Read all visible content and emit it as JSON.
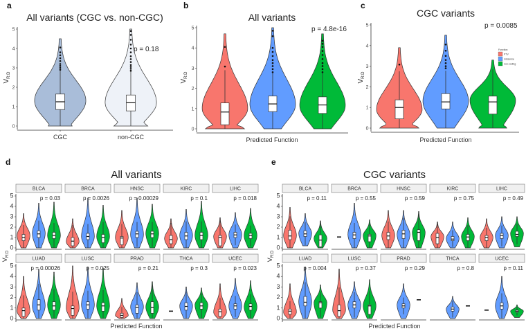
{
  "colors": {
    "PTV": "#F8766D",
    "missense": "#619CFF",
    "non-coding": "#00BA38",
    "CGC": "#A9BDD9",
    "non-CGC": "#EEF2F8"
  },
  "chart_data": [
    {
      "id": "a",
      "type": "violin",
      "title": "All variants (CGC vs. non-CGC)",
      "ylabel": "V_R:D",
      "ylabel_main": "V",
      "ylabel_sub": "R:D",
      "xlabel": "",
      "ylim": [
        0,
        5
      ],
      "yticks": [
        0,
        1,
        2,
        3,
        4,
        5
      ],
      "annotation": "p = 0.18",
      "categories": [
        "CGC",
        "non-CGC"
      ],
      "series": [
        {
          "category": "CGC",
          "color_key": "CGC",
          "median": 1.25,
          "q1": 0.85,
          "q3": 1.65,
          "vmin": 0,
          "vmax": 4.5,
          "peak": 1.3,
          "base": 0.45,
          "outliers": [
            2.9,
            3.0,
            3.1,
            3.2,
            3.35,
            3.5,
            3.65,
            3.8,
            4.05
          ]
        },
        {
          "category": "non-CGC",
          "color_key": "non-CGC",
          "median": 1.2,
          "q1": 0.78,
          "q3": 1.6,
          "vmin": 0,
          "vmax": 5.0,
          "peak": 1.2,
          "base": 0.65,
          "outliers": [
            2.85,
            2.95,
            3.05,
            3.15,
            3.3,
            3.45,
            3.6,
            3.8,
            4.0,
            4.2,
            4.45,
            4.7,
            4.9
          ]
        }
      ]
    },
    {
      "id": "b",
      "type": "violin",
      "title": "All variants",
      "ylabel_main": "V",
      "ylabel_sub": "R:D",
      "xlabel": "Predicted Function",
      "ylim": [
        0,
        5
      ],
      "yticks": [
        0,
        1,
        2,
        3,
        4,
        5
      ],
      "annotation": "p = 4.8e-16",
      "categories": [
        "PTV",
        "missense",
        "non-coding"
      ],
      "series": [
        {
          "category": "PTV",
          "color_key": "PTV",
          "median": 0.83,
          "q1": 0.2,
          "q3": 1.28,
          "vmin": 0,
          "vmax": 4.7,
          "peak": 1.0,
          "base": 0.85,
          "outliers": [
            3.08,
            4.05
          ]
        },
        {
          "category": "missense",
          "color_key": "missense",
          "median": 1.23,
          "q1": 0.85,
          "q3": 1.62,
          "vmin": 0,
          "vmax": 5.0,
          "peak": 1.2,
          "base": 0.35,
          "outliers": [
            2.8,
            2.95,
            3.1,
            3.25,
            3.4,
            3.6,
            3.8,
            4.0,
            4.58,
            4.85
          ]
        },
        {
          "category": "non-coding",
          "color_key": "non-coding",
          "median": 1.18,
          "q1": 0.76,
          "q3": 1.58,
          "vmin": 0,
          "vmax": 4.7,
          "peak": 1.15,
          "base": 0.35,
          "outliers": [
            2.8,
            2.95,
            3.1,
            3.25,
            3.45,
            3.65,
            3.85,
            4.05,
            4.2,
            4.35
          ]
        }
      ]
    },
    {
      "id": "c",
      "type": "violin",
      "title": "CGC variants",
      "ylabel_main": "V",
      "ylabel_sub": "R:D",
      "xlabel": "Predicted Function",
      "ylim": [
        0,
        5
      ],
      "yticks": [
        0,
        1,
        2,
        3,
        4,
        5
      ],
      "annotation": "p = 0.0085",
      "categories": [
        "PTV",
        "missense",
        "non-coding"
      ],
      "legend": {
        "title": "Function",
        "position": "right",
        "entries": [
          "PTV",
          "missense",
          "non-coding"
        ]
      },
      "series": [
        {
          "category": "PTV",
          "color_key": "PTV",
          "median": 1.0,
          "q1": 0.45,
          "q3": 1.37,
          "vmin": 0,
          "vmax": 3.9,
          "peak": 0.9,
          "base": 0.85,
          "outliers": [
            3.08
          ]
        },
        {
          "category": "missense",
          "color_key": "missense",
          "median": 1.27,
          "q1": 0.93,
          "q3": 1.67,
          "vmin": 0,
          "vmax": 4.5,
          "peak": 1.3,
          "base": 0.35,
          "outliers": [
            2.9,
            3.0,
            3.15,
            3.3,
            3.5,
            3.75,
            4.05
          ]
        },
        {
          "category": "non-coding",
          "color_key": "non-coding",
          "median": 1.27,
          "q1": 0.68,
          "q3": 1.55,
          "vmin": 0,
          "vmax": 3.3,
          "peak": 1.35,
          "base": 0.6,
          "outliers": []
        }
      ]
    },
    {
      "id": "d",
      "type": "violin-facets",
      "title": "All variants",
      "ylabel_main": "V",
      "ylabel_sub": "R:D",
      "xlabel": "Predicted Function",
      "ylim": [
        0,
        5
      ],
      "yticks": [
        0,
        1,
        2,
        3,
        4,
        5
      ],
      "series_order": [
        "PTV",
        "missense",
        "non-coding"
      ],
      "facets": [
        {
          "name": "BLCA",
          "p": "p = 0.03",
          "v": [
            [
              1.0,
              0.7,
              1.3,
              0,
              3.3,
              1.2
            ],
            [
              1.35,
              1.0,
              1.65,
              0,
              4.3,
              1.4
            ],
            [
              1.2,
              0.9,
              1.5,
              0,
              4.4,
              1.2
            ]
          ]
        },
        {
          "name": "BRCA",
          "p": "p = 0.0026",
          "v": [
            [
              0.65,
              0.2,
              1.0,
              0,
              2.8,
              0.6
            ],
            [
              1.1,
              0.8,
              1.4,
              0,
              4.8,
              1.1
            ],
            [
              1.0,
              0.5,
              1.3,
              0,
              4.1,
              1.1
            ]
          ]
        },
        {
          "name": "HNSC",
          "p": "p = 0.00029",
          "v": [
            [
              0.95,
              0.3,
              1.1,
              0,
              3.6,
              1.0
            ],
            [
              1.35,
              1.0,
              1.6,
              0,
              4.8,
              1.3
            ],
            [
              1.35,
              1.0,
              1.6,
              0,
              4.2,
              1.4
            ]
          ]
        },
        {
          "name": "KIRC",
          "p": "p = 0.1",
          "v": [
            [
              0.8,
              0.4,
              1.2,
              0,
              2.8,
              0.9
            ],
            [
              1.15,
              0.8,
              1.5,
              0,
              3.7,
              1.2
            ],
            [
              1.2,
              0.8,
              1.5,
              0,
              4.5,
              1.2
            ]
          ]
        },
        {
          "name": "LIHC",
          "p": "p = 0.018",
          "v": [
            [
              1.0,
              0.2,
              1.2,
              0,
              2.9,
              1.1
            ],
            [
              1.25,
              1.0,
              1.5,
              0,
              3.4,
              1.3
            ],
            [
              1.2,
              0.9,
              1.4,
              0,
              3.8,
              1.2
            ]
          ]
        },
        {
          "name": "LUAD",
          "p": "p = 0.00026",
          "v": [
            [
              0.75,
              0.2,
              1.0,
              0,
              4.0,
              0.7
            ],
            [
              1.3,
              0.8,
              1.8,
              0,
              4.7,
              1.2
            ],
            [
              1.2,
              0.8,
              1.6,
              0,
              4.4,
              1.3
            ]
          ]
        },
        {
          "name": "LUSC",
          "p": "p = 0.025",
          "v": [
            [
              0.95,
              0.3,
              1.2,
              0,
              5.0,
              1.0
            ],
            [
              1.3,
              0.9,
              1.6,
              0,
              4.9,
              1.3
            ],
            [
              1.2,
              0.7,
              1.5,
              0,
              4.8,
              1.2
            ]
          ]
        },
        {
          "name": "PRAD",
          "p": "p = 0.21",
          "v": [
            [
              0.3,
              0.1,
              0.5,
              0,
              1.9,
              0.3
            ],
            [
              1.05,
              0.5,
              1.3,
              0,
              3.4,
              1.1
            ],
            [
              1.05,
              0.5,
              1.6,
              0,
              3.5,
              1.1
            ]
          ]
        },
        {
          "name": "THCA",
          "p": "p = 0.3",
          "v": [
            [
              0.7
            ],
            [
              1.15,
              0.8,
              1.5,
              0,
              3.0,
              1.2
            ],
            [
              1.2,
              0.9,
              1.5,
              0,
              2.9,
              1.3
            ]
          ]
        },
        {
          "name": "UCEC",
          "p": "p = 0.023",
          "v": [
            [
              0.65,
              0.2,
              0.9,
              0,
              3.3,
              0.6
            ],
            [
              1.2,
              0.9,
              1.4,
              0,
              3.8,
              1.2
            ],
            [
              1.15,
              0.8,
              1.4,
              0,
              3.6,
              1.1
            ]
          ]
        }
      ]
    },
    {
      "id": "e",
      "type": "violin-facets",
      "title": "CGC variants",
      "ylabel_main": "V",
      "ylabel_sub": "R:D",
      "xlabel": "Predicted Function",
      "ylim": [
        0,
        5
      ],
      "yticks": [
        0,
        1,
        2,
        3,
        4,
        5
      ],
      "series_order": [
        "PTV",
        "missense",
        "non-coding"
      ],
      "facets": [
        {
          "name": "BLCA",
          "p": "p = 0.11",
          "v": [
            [
              1.15,
              0.8,
              1.7,
              0,
              3.9,
              1.2
            ],
            [
              1.35,
              1.1,
              1.65,
              0.2,
              3.3,
              1.4
            ],
            [
              0.75,
              0.1,
              1.25,
              0,
              2.6,
              0.9
            ]
          ]
        },
        {
          "name": "BRCA",
          "p": "p = 0.55",
          "v": [
            [
              1.05
            ],
            [
              1.25,
              0.9,
              1.5,
              0,
              4.3,
              1.3
            ],
            [
              1.15,
              0.6,
              1.3,
              0,
              2.7,
              1.2
            ]
          ]
        },
        {
          "name": "HNSC",
          "p": "p = 0.59",
          "v": [
            [
              1.15,
              0.8,
              1.5,
              0,
              3.6,
              1.2
            ],
            [
              1.35,
              0.9,
              1.7,
              0,
              3.6,
              1.3
            ],
            [
              1.5,
              0.7,
              1.75,
              0,
              3.5,
              1.5
            ]
          ]
        },
        {
          "name": "KIRC",
          "p": "p = 0.75",
          "v": [
            [
              1.0,
              0.4,
              1.4,
              0,
              2.5,
              1.1
            ],
            [
              0.85,
              0.7,
              1.1,
              0,
              2.5,
              0.9
            ],
            [
              1.05,
              0.7,
              1.3,
              0,
              2.9,
              1.1
            ]
          ]
        },
        {
          "name": "LIHC",
          "p": "p = 0.49",
          "v": [
            [
              1.0,
              0.7,
              1.2,
              0,
              2.8,
              1.0
            ],
            [
              1.2,
              0.9,
              1.4,
              0,
              3.0,
              1.2
            ],
            [
              1.3,
              1.1,
              1.6,
              0.1,
              3.0,
              1.4
            ]
          ]
        },
        {
          "name": "LUAD",
          "p": "p = 0.004",
          "v": [
            [
              0.7,
              0.4,
              0.9,
              0,
              3.3,
              0.6
            ],
            [
              1.55,
              1.2,
              2.1,
              0,
              4.9,
              1.6
            ],
            [
              1.5,
              1.0,
              1.6,
              0,
              3.2,
              1.5
            ]
          ]
        },
        {
          "name": "LUSC",
          "p": "p = 0.37",
          "v": [
            [
              0.75,
              0.2,
              1.3,
              0,
              4.7,
              0.8
            ],
            [
              1.3,
              1.0,
              1.6,
              0,
              3.5,
              1.3
            ],
            [
              1.2,
              0.4,
              1.3,
              0,
              3.7,
              1.2
            ]
          ]
        },
        {
          "name": "PRAD",
          "p": "p = 0.29",
          "v": [
            [],
            [
              1.2,
              1.0,
              1.4,
              0,
              3.3,
              1.3
            ],
            [
              1.78
            ]
          ]
        },
        {
          "name": "THCA",
          "p": "p = 0.8",
          "v": [
            [],
            [
              0.9,
              0.7,
              1.1,
              0,
              2.1,
              0.9
            ],
            [
              1.2
            ]
          ]
        },
        {
          "name": "UCEC",
          "p": "p = 0.11",
          "v": [
            [
              0.8
            ],
            [
              1.2,
              0.9,
              1.5,
              0,
              4.0,
              1.2
            ],
            [
              0.7,
              0.6,
              0.8,
              0.1,
              1.3,
              0.7
            ]
          ]
        }
      ]
    }
  ]
}
